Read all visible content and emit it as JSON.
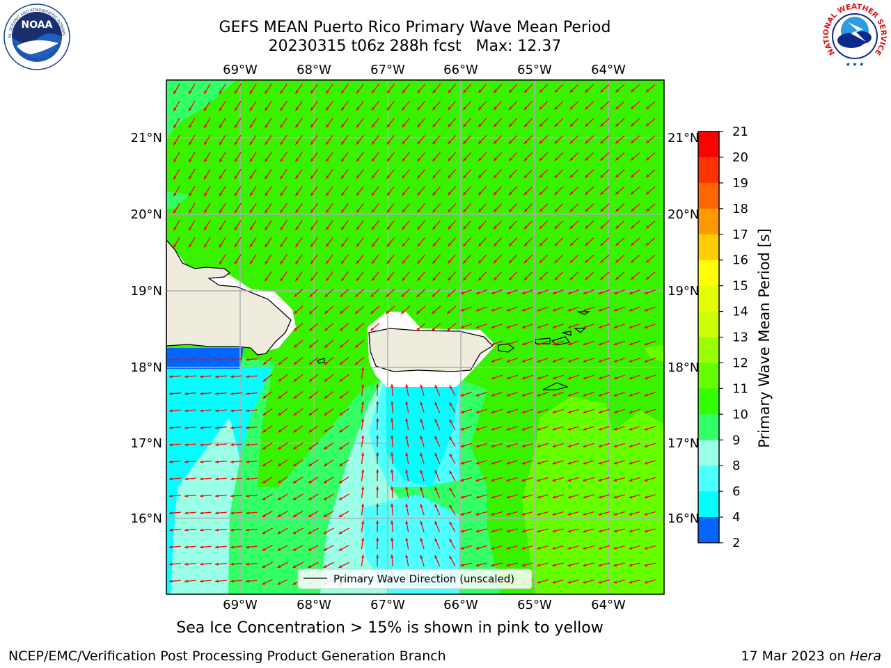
{
  "title": {
    "line1": "GEFS MEAN Puerto Rico Primary Wave Mean Period",
    "line2": "20230315 t06z 288h fcst   Max: 12.37"
  },
  "logos": {
    "noaa_text": "NOAA",
    "noaa_ring_top": "NATIONAL OCEANIC AND ATMOSPHERIC ADMINISTRATION",
    "noaa_ring_bottom": "U.S. DEPARTMENT OF COMMERCE",
    "nws_ring": "NATIONAL WEATHER SERVICE"
  },
  "map": {
    "lon_labels": [
      "69°W",
      "68°W",
      "67°W",
      "66°W",
      "65°W",
      "64°W"
    ],
    "lat_labels": [
      "21°N",
      "20°N",
      "19°N",
      "18°N",
      "17°N",
      "16°N"
    ],
    "legend_label": "Primary Wave Direction (unscaled)",
    "arrow_color": "#ff0000",
    "land_color": "#efebdd",
    "ocean_color": "#39f200"
  },
  "colorbar": {
    "title": "Primary Wave Mean Period [s]",
    "ticks": [
      "2",
      "4",
      "6",
      "8",
      "9",
      "10",
      "11",
      "12",
      "13",
      "14",
      "15",
      "16",
      "17",
      "18",
      "19",
      "20",
      "21"
    ],
    "colors": [
      "#0000ff",
      "#0066ff",
      "#00ffff",
      "#4dffff",
      "#99ffe6",
      "#33ff66",
      "#33ff00",
      "#66ff00",
      "#99ff00",
      "#ccff00",
      "#e6ff00",
      "#ffff00",
      "#ffcc00",
      "#ff9900",
      "#ff6600",
      "#ff3300",
      "#ff0000"
    ]
  },
  "caption": "Sea Ice Concentration > 15% is shown in pink to yellow",
  "footer": {
    "left": "NCEP/EMC/Verification Post Processing Product Generation Branch",
    "right_prefix": "17 Mar 2023 on ",
    "right_host": "Hera"
  }
}
